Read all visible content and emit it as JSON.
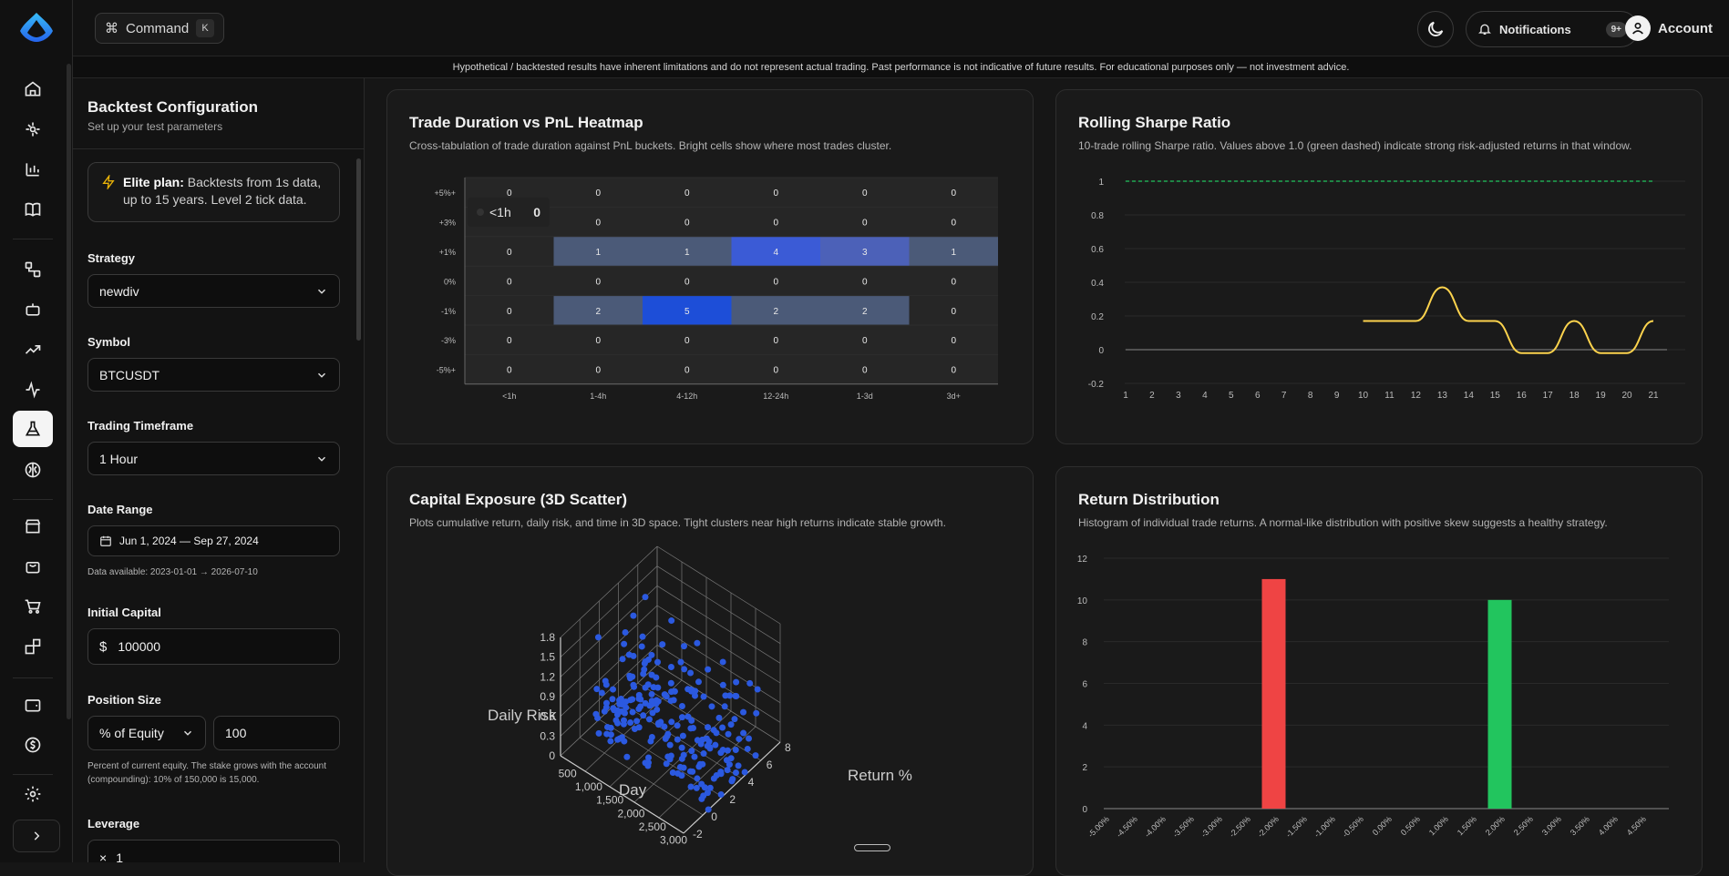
{
  "topbar": {
    "command_label": "Command",
    "command_key": "K",
    "notifications_label": "Notifications",
    "notifications_badge": "9+",
    "account_label": "Account"
  },
  "disclaimer": "Hypothetical / backtested results have inherent limitations and do not represent actual trading. Past performance is not indicative of future results. For educational purposes only — not investment advice.",
  "sidebar_icons": [
    "home-icon",
    "network-icon",
    "bar-chart-icon",
    "book-icon",
    "workflow-icon",
    "bot-icon",
    "trending-up-icon",
    "activity-icon",
    "flask-icon",
    "brain-icon",
    "store-icon",
    "bag-icon",
    "cart-icon",
    "blocks-icon",
    "wallet-icon",
    "coin-icon",
    "gear-icon",
    "chevron-right-icon"
  ],
  "panel": {
    "title": "Backtest Configuration",
    "subtitle": "Set up your test parameters",
    "plan_bold": "Elite plan:",
    "plan_text": " Backtests from 1s data, up to 15 years. Level 2 tick data.",
    "strategy_label": "Strategy",
    "strategy_value": "newdiv",
    "symbol_label": "Symbol",
    "symbol_value": "BTCUSDT",
    "timeframe_label": "Trading Timeframe",
    "timeframe_value": "1 Hour",
    "date_label": "Date Range",
    "date_value": "Jun 1, 2024 — Sep 27, 2024",
    "date_hint": "Data available: 2023-01-01 → 2026-07-10",
    "capital_label": "Initial Capital",
    "capital_prefix": "$",
    "capital_value": "100000",
    "position_label": "Position Size",
    "position_mode": "% of Equity",
    "position_value": "100",
    "position_hint": "Percent of current equity. The stake grows with the account (compounding): 10% of 150,000 is 15,000.",
    "leverage_label": "Leverage",
    "leverage_prefix": "×",
    "leverage_value": "1"
  },
  "heatmap": {
    "title": "Trade Duration vs PnL Heatmap",
    "subtitle": "Cross-tabulation of trade duration against PnL buckets. Bright cells show where most trades cluster.",
    "tooltip_label": "<1h",
    "tooltip_value": "0"
  },
  "sharpe": {
    "title": "Rolling Sharpe Ratio",
    "subtitle": "10-trade rolling Sharpe ratio. Values above 1.0 (green dashed) indicate strong risk-adjusted returns in that window."
  },
  "scatter": {
    "title": "Capital Exposure (3D Scatter)",
    "subtitle": "Plots cumulative return, daily risk, and time in 3D space. Tight clusters near high returns indicate stable growth."
  },
  "returns": {
    "title": "Return Distribution",
    "subtitle": "Histogram of individual trade returns. A normal-like distribution with positive skew suggests a healthy strategy."
  },
  "chart_data": [
    {
      "type": "heatmap",
      "title": "Trade Duration vs PnL Heatmap",
      "x": [
        "<1h",
        "1-4h",
        "4-12h",
        "12-24h",
        "1-3d",
        "3d+"
      ],
      "y": [
        "+5%+",
        "+3%",
        "+1%",
        "0%",
        "-1%",
        "-3%",
        "-5%+"
      ],
      "values": [
        [
          0,
          0,
          0,
          0,
          0,
          0
        ],
        [
          0,
          0,
          0,
          0,
          0,
          0
        ],
        [
          0,
          1,
          1,
          4,
          3,
          1
        ],
        [
          0,
          0,
          0,
          0,
          0,
          0
        ],
        [
          0,
          2,
          5,
          2,
          2,
          0
        ],
        [
          0,
          0,
          0,
          0,
          0,
          0
        ],
        [
          0,
          0,
          0,
          0,
          0,
          0
        ]
      ]
    },
    {
      "type": "line",
      "title": "Rolling Sharpe Ratio",
      "x": [
        1,
        2,
        3,
        4,
        5,
        6,
        7,
        8,
        9,
        10,
        11,
        12,
        13,
        14,
        15,
        16,
        17,
        18,
        19,
        20,
        21
      ],
      "series": [
        {
          "values": [
            null,
            null,
            null,
            null,
            null,
            null,
            null,
            null,
            null,
            0.17,
            0.17,
            0.17,
            0.37,
            0.17,
            0.17,
            -0.02,
            -0.02,
            0.17,
            -0.02,
            -0.02,
            0.17
          ]
        }
      ],
      "threshold": 1.0,
      "ylim": [
        -0.2,
        1
      ],
      "yticks": [
        -0.2,
        0,
        0.2,
        0.4,
        0.6,
        0.8,
        1
      ]
    },
    {
      "type": "scatter",
      "title": "Capital Exposure (3D Scatter)",
      "xlabel": "Day",
      "ylabel": "Return %",
      "zlabel": "Daily Risk",
      "x_ticks": [
        500,
        1000,
        1500,
        2000,
        2500,
        3000
      ],
      "x_tick_labels": [
        "500",
        "1,000",
        "1,500",
        "2,000",
        "2,500",
        "3,000"
      ],
      "y_ticks": [
        -2,
        0,
        2,
        4,
        6,
        8
      ],
      "z_ticks": [
        0,
        0.3,
        0.6,
        0.9,
        1.2,
        1.5,
        1.8
      ]
    },
    {
      "type": "bar",
      "title": "Return Distribution",
      "categories": [
        "-5.00%",
        "-4.50%",
        "-4.00%",
        "-3.50%",
        "-3.00%",
        "-2.50%",
        "-2.00%",
        "-1.50%",
        "-1.00%",
        "-0.50%",
        "0.00%",
        "0.50%",
        "1.00%",
        "1.50%",
        "2.00%",
        "2.50%",
        "3.00%",
        "3.50%",
        "4.00%",
        "4.50%"
      ],
      "values": [
        0,
        0,
        0,
        0,
        0,
        0,
        11,
        0,
        0,
        0,
        0,
        0,
        0,
        0,
        10,
        0,
        0,
        0,
        0,
        0
      ],
      "colors": {
        "negative": "#ef4444",
        "positive": "#22c55e"
      },
      "ylim": [
        0,
        12
      ],
      "yticks": [
        0,
        2,
        4,
        6,
        8,
        10,
        12
      ]
    }
  ]
}
